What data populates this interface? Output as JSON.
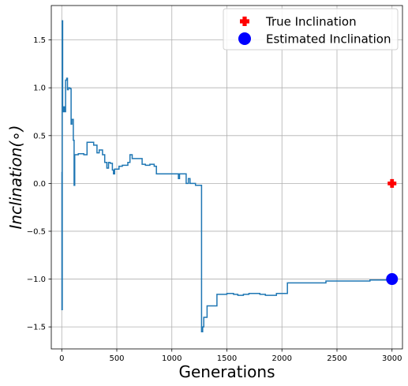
{
  "chart_data": {
    "type": "line",
    "title": "",
    "xlabel": "Generations",
    "ylabel": "Inclination(∘)",
    "xlim": [
      -95,
      3095
    ],
    "ylim": [
      -1.73,
      1.86
    ],
    "xticks": [
      0,
      500,
      1000,
      1500,
      2000,
      2500,
      3000
    ],
    "yticks": [
      -1.5,
      -1.0,
      -0.5,
      0.0,
      0.5,
      1.0,
      1.5
    ],
    "xtick_labels": [
      "0",
      "500",
      "1000",
      "1500",
      "2000",
      "2500",
      "3000"
    ],
    "ytick_labels": [
      "−1.5",
      "−1.0",
      "−0.5",
      "0.0",
      "0.5",
      "1.0",
      "1.5"
    ],
    "grid": true,
    "legend_position": "top-right",
    "series": [
      {
        "color": "#1f77b4",
        "style": "step",
        "points": [
          [
            0,
            0.12
          ],
          [
            2,
            -1.32
          ],
          [
            5,
            1.7
          ],
          [
            8,
            0.8
          ],
          [
            12,
            0.75
          ],
          [
            18,
            0.8
          ],
          [
            25,
            0.75
          ],
          [
            35,
            1.08
          ],
          [
            45,
            1.1
          ],
          [
            52,
            0.98
          ],
          [
            60,
            1.0
          ],
          [
            75,
            0.99
          ],
          [
            85,
            0.62
          ],
          [
            92,
            0.67
          ],
          [
            105,
            0.45
          ],
          [
            112,
            -0.02
          ],
          [
            118,
            0.3
          ],
          [
            150,
            0.31
          ],
          [
            200,
            0.3
          ],
          [
            230,
            0.43
          ],
          [
            290,
            0.4
          ],
          [
            320,
            0.32
          ],
          [
            340,
            0.35
          ],
          [
            370,
            0.3
          ],
          [
            390,
            0.22
          ],
          [
            410,
            0.16
          ],
          [
            425,
            0.22
          ],
          [
            440,
            0.21
          ],
          [
            460,
            0.14
          ],
          [
            470,
            0.1
          ],
          [
            480,
            0.15
          ],
          [
            500,
            0.15
          ],
          [
            520,
            0.18
          ],
          [
            550,
            0.19
          ],
          [
            600,
            0.22
          ],
          [
            620,
            0.3
          ],
          [
            640,
            0.26
          ],
          [
            700,
            0.26
          ],
          [
            730,
            0.2
          ],
          [
            760,
            0.19
          ],
          [
            800,
            0.2
          ],
          [
            840,
            0.18
          ],
          [
            860,
            0.1
          ],
          [
            950,
            0.1
          ],
          [
            1030,
            0.1
          ],
          [
            1060,
            0.05
          ],
          [
            1070,
            0.1
          ],
          [
            1100,
            0.1
          ],
          [
            1120,
            0.1
          ],
          [
            1130,
            0.0
          ],
          [
            1150,
            0.05
          ],
          [
            1165,
            0.0
          ],
          [
            1180,
            0.0
          ],
          [
            1200,
            0.0
          ],
          [
            1215,
            -0.02
          ],
          [
            1260,
            -0.02
          ],
          [
            1270,
            -1.55
          ],
          [
            1280,
            -1.5
          ],
          [
            1290,
            -1.4
          ],
          [
            1300,
            -1.4
          ],
          [
            1320,
            -1.28
          ],
          [
            1350,
            -1.28
          ],
          [
            1400,
            -1.28
          ],
          [
            1410,
            -1.16
          ],
          [
            1450,
            -1.16
          ],
          [
            1500,
            -1.15
          ],
          [
            1560,
            -1.16
          ],
          [
            1600,
            -1.17
          ],
          [
            1650,
            -1.16
          ],
          [
            1700,
            -1.15
          ],
          [
            1750,
            -1.15
          ],
          [
            1800,
            -1.16
          ],
          [
            1850,
            -1.17
          ],
          [
            1900,
            -1.17
          ],
          [
            1950,
            -1.15
          ],
          [
            2000,
            -1.15
          ],
          [
            2050,
            -1.04
          ],
          [
            2200,
            -1.04
          ],
          [
            2350,
            -1.04
          ],
          [
            2400,
            -1.02
          ],
          [
            2500,
            -1.02
          ],
          [
            2700,
            -1.02
          ],
          [
            2800,
            -1.01
          ],
          [
            2900,
            -1.01
          ],
          [
            2980,
            -1.0
          ],
          [
            3000,
            -1.0
          ]
        ]
      }
    ],
    "markers": [
      {
        "name": "True Inclination",
        "x": 3000,
        "y": 0.0,
        "color": "#ff0000",
        "shape": "plus-filled"
      },
      {
        "name": "Estimated Inclination",
        "x": 3000,
        "y": -1.0,
        "color": "#0000ff",
        "shape": "circle"
      }
    ]
  }
}
